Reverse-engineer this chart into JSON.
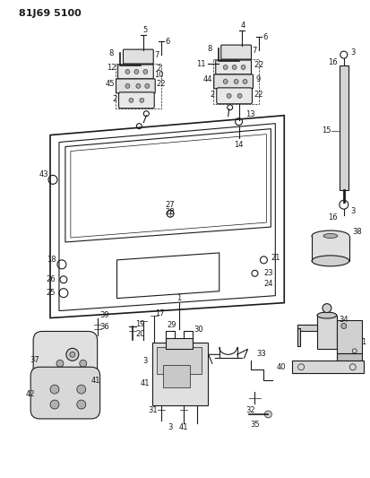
{
  "title": "81J69 5100",
  "bg": "#ffffff",
  "fg": "#1a1a1a",
  "title_fs": 9,
  "fig_w": 4.13,
  "fig_h": 5.33,
  "dpi": 100
}
